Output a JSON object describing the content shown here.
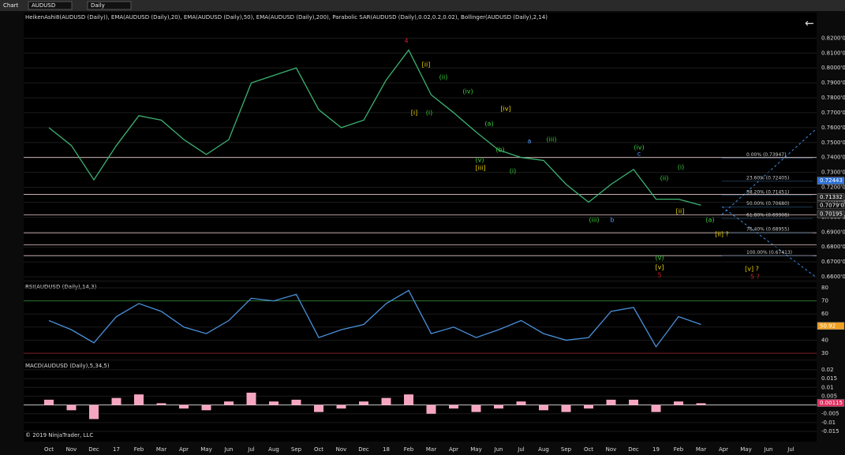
{
  "toolbar": {
    "app": "Chart",
    "instrument": "AUDUSD",
    "interval": "Daily",
    "copyright": "© 2019 NinjaTrader, LLC"
  },
  "chart_data": [
    {
      "type": "line",
      "title": "HeikenAshi8(AUDUSD (Daily)), EMA(AUDUSD (Daily),20), EMA(AUDUSD (Daily),50), EMA(AUDUSD (Daily),200), Parabolic SAR(AUDUSD (Daily),0.02,0.2,0.02), Bollinger(AUDUSD (Daily),2,14)",
      "categories": [
        "Oct",
        "Nov",
        "Dec",
        "17",
        "Feb",
        "Mar",
        "Apr",
        "May",
        "Jun",
        "Jul",
        "Aug",
        "Sep",
        "Oct",
        "Nov",
        "Dec",
        "18",
        "Feb",
        "Mar",
        "Apr",
        "May",
        "Jun",
        "Jul",
        "Aug",
        "Sep",
        "Oct",
        "Nov",
        "Dec",
        "19",
        "Feb",
        "Mar",
        "Apr",
        "May",
        "Jun",
        "Jul"
      ],
      "series": [
        {
          "name": "AUDUSD",
          "color": "#3cb371",
          "values": [
            0.76,
            0.748,
            0.725,
            0.748,
            0.768,
            0.765,
            0.752,
            0.742,
            0.752,
            0.79,
            0.795,
            0.8,
            0.772,
            0.76,
            0.765,
            0.792,
            0.812,
            0.782,
            0.77,
            0.757,
            0.745,
            0.74,
            0.738,
            0.722,
            0.71,
            0.722,
            0.732,
            0.712,
            0.712,
            0.708,
            null,
            null,
            null,
            null
          ]
        }
      ],
      "ylim": [
        0.6579,
        0.8371
      ],
      "yticks": [
        {
          "value": 0.66,
          "label": "0.6600'0"
        },
        {
          "value": 0.67,
          "label": "0.6700'0"
        },
        {
          "value": 0.68,
          "label": "0.6800'0"
        },
        {
          "value": 0.69,
          "label": "0.6900'0"
        },
        {
          "value": 0.7,
          "label": "0.7000'0"
        },
        {
          "value": 0.71,
          "label": "0.7100'0"
        },
        {
          "value": 0.72,
          "label": "0.7200'0"
        },
        {
          "value": 0.73,
          "label": "0.7300'0"
        },
        {
          "value": 0.74,
          "label": "0.7400'0"
        },
        {
          "value": 0.75,
          "label": "0.7500'0"
        },
        {
          "value": 0.76,
          "label": "0.7600'0"
        },
        {
          "value": 0.77,
          "label": "0.7700'0"
        },
        {
          "value": 0.78,
          "label": "0.7800'0"
        },
        {
          "value": 0.79,
          "label": "0.7900'0"
        },
        {
          "value": 0.8,
          "label": "0.8000'0"
        },
        {
          "value": 0.81,
          "label": "0.8100'0"
        },
        {
          "value": 0.82,
          "label": "0.8200'0"
        }
      ],
      "levels": [
        0.74,
        0.7153,
        0.7015,
        0.6895,
        0.6815,
        0.6742
      ],
      "fib_levels": [
        {
          "value": 0.73947,
          "label": "0.00% (0.73947)"
        },
        {
          "value": 0.72405,
          "label": "23.60% (0.72405)"
        },
        {
          "value": 0.71451,
          "label": "38.20% (0.71451)"
        },
        {
          "value": 0.7068,
          "label": "50.00% (0.70680)"
        },
        {
          "value": 0.69908,
          "label": "61.80% (0.69908)"
        },
        {
          "value": 0.68955,
          "label": "76.40% (0.68955)"
        },
        {
          "value": 0.67413,
          "label": "100.00% (0.67413)"
        }
      ],
      "price_tags": [
        {
          "value": 0.72443,
          "color": "#2a6fd6"
        },
        {
          "value": 0.71332,
          "color": "#222"
        },
        {
          "value": 0.7079,
          "label": "0.7079'0",
          "color": "#111"
        },
        {
          "value": 0.70195,
          "color": "#222"
        }
      ],
      "annotations": [
        {
          "text": "4",
          "color": "#d02020"
        },
        {
          "text": "[ii]",
          "color": "#e8d200"
        },
        {
          "text": "(ii)",
          "color": "#3ccf3c"
        },
        {
          "text": "(iv)",
          "color": "#3ccf3c"
        },
        {
          "text": "[iv]",
          "color": "#e8d200"
        },
        {
          "text": "(a)",
          "color": "#3ccf3c"
        },
        {
          "text": "(b)",
          "color": "#3ccf3c"
        },
        {
          "text": "(v)",
          "color": "#3ccf3c"
        },
        {
          "text": "[iii]",
          "color": "#e8d200"
        },
        {
          "text": "(i)",
          "color": "#3ccf3c"
        },
        {
          "text": "a",
          "color": "#5aa0ff"
        },
        {
          "text": "(iii)",
          "color": "#3ccf3c"
        },
        {
          "text": "(iv)",
          "color": "#3ccf3c"
        },
        {
          "text": "c",
          "color": "#5aa0ff"
        },
        {
          "text": "(i)",
          "color": "#3ccf3c"
        },
        {
          "text": "(ii)",
          "color": "#3ccf3c"
        },
        {
          "text": "[ii]",
          "color": "#e8d200"
        },
        {
          "text": "(iii)",
          "color": "#3ccf3c"
        },
        {
          "text": "(a)",
          "color": "#3ccf3c"
        },
        {
          "text": "[ii] ?",
          "color": "#e8d200"
        },
        {
          "text": "(v)",
          "color": "#3ccf3c"
        },
        {
          "text": "[v]",
          "color": "#e8d200"
        },
        {
          "text": "5",
          "color": "#d02020"
        },
        {
          "text": "[v] ?",
          "color": "#e8d200"
        },
        {
          "text": "5 ?",
          "color": "#d02020"
        },
        {
          "text": "[i]",
          "color": "#e8d200"
        },
        {
          "text": "(i)",
          "color": "#3ccf3c"
        },
        {
          "text": "b",
          "color": "#5aa0ff"
        }
      ]
    },
    {
      "type": "line",
      "title": "RSI(AUDUSD (Daily),14,3)",
      "series": [
        {
          "name": "RSI",
          "color": "#4a90d9",
          "values": [
            55,
            48,
            38,
            58,
            68,
            62,
            50,
            45,
            55,
            72,
            70,
            75,
            42,
            48,
            52,
            68,
            78,
            45,
            50,
            42,
            48,
            55,
            45,
            40,
            42,
            62,
            65,
            35,
            58,
            52,
            null,
            null,
            null,
            null
          ]
        }
      ],
      "ylim": [
        25.8,
        84.2
      ],
      "yticks": [
        30,
        40,
        50,
        60,
        70,
        80
      ],
      "levels": [
        70,
        30
      ],
      "level_colors": [
        "#2e7d32",
        "#a02030"
      ],
      "price_tags": [
        {
          "value": 50.92,
          "color": "#f0a020"
        }
      ]
    },
    {
      "type": "bar",
      "title": "MACD(AUDUSD (Daily),5,34,5)",
      "series": [
        {
          "name": "MACD",
          "color": "#f4a6c0",
          "values": [
            0.003,
            -0.003,
            -0.008,
            0.004,
            0.006,
            0.001,
            -0.002,
            -0.003,
            0.002,
            0.007,
            0.002,
            0.003,
            -0.004,
            -0.002,
            0.002,
            0.004,
            0.006,
            -0.005,
            -0.002,
            -0.004,
            -0.002,
            0.002,
            -0.003,
            -0.004,
            -0.002,
            0.003,
            0.003,
            -0.004,
            0.002,
            0.001,
            null,
            null,
            null,
            null
          ]
        }
      ],
      "ylim": [
        -0.0208,
        0.0249
      ],
      "yticks": [
        -0.015,
        -0.01,
        -0.005,
        0.005,
        0.01,
        0.015,
        0.02
      ],
      "levels": [
        0
      ],
      "level_colors": [
        "#dddddd"
      ],
      "price_tags": [
        {
          "value": 0.00115,
          "color": "#e03060"
        }
      ]
    }
  ]
}
